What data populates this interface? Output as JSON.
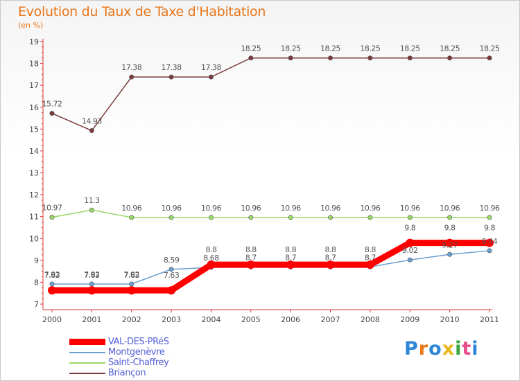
{
  "chart_data": {
    "type": "line",
    "title": "Evolution du Taux de Taxe d'Habitation",
    "subtitle": "(en %)",
    "x": [
      "2000",
      "2001",
      "2002",
      "2003",
      "2004",
      "2005",
      "2006",
      "2007",
      "2008",
      "2009",
      "2010",
      "2011"
    ],
    "ylim": [
      7,
      19
    ],
    "yticks": [
      7,
      8,
      9,
      10,
      11,
      12,
      13,
      14,
      15,
      16,
      17,
      18,
      19
    ],
    "grid": false,
    "series": [
      {
        "name": "VAL-DES-PRéS",
        "color": "#ff0000",
        "labels_shown": true,
        "values": [
          7.63,
          7.63,
          7.63,
          7.63,
          8.8,
          8.8,
          8.8,
          8.8,
          8.8,
          9.8,
          9.8,
          9.8
        ],
        "labels": [
          "7.63",
          "7.63",
          "7.63",
          "7.63",
          "8.8",
          "8.8",
          "8.8",
          "8.8",
          "8.8",
          "9.8",
          "9.8",
          "9.8"
        ]
      },
      {
        "name": "Montgenèvre",
        "color": "#6a9fd0",
        "labels_shown": true,
        "values": [
          7.92,
          7.92,
          7.92,
          8.59,
          8.68,
          8.7,
          8.7,
          8.7,
          8.7,
          9.02,
          9.27,
          9.44
        ],
        "labels": [
          "7.92",
          "7.92",
          "7.92",
          "8.59",
          "8.68",
          "8.7",
          "8.7",
          "8.7",
          "8.7",
          "9.02",
          "9.27",
          "9.44"
        ]
      },
      {
        "name": "Saint-Chaffrey",
        "color": "#99d666",
        "labels_shown": true,
        "values": [
          10.97,
          11.3,
          10.96,
          10.96,
          10.96,
          10.96,
          10.96,
          10.96,
          10.96,
          10.96,
          10.96,
          10.96
        ],
        "labels": [
          "10.97",
          "11.3",
          "10.96",
          "10.96",
          "10.96",
          "10.96",
          "10.96",
          "10.96",
          "10.96",
          "10.96",
          "10.96",
          "10.96"
        ]
      },
      {
        "name": "Briançon",
        "color": "#7a3a3a",
        "labels_shown": true,
        "values": [
          15.72,
          14.93,
          17.38,
          17.38,
          17.38,
          18.25,
          18.25,
          18.25,
          18.25,
          18.25,
          18.25,
          18.25
        ],
        "labels": [
          "15.72",
          "14.93",
          "17.38",
          "17.38",
          "17.38",
          "18.25",
          "18.25",
          "18.25",
          "18.25",
          "18.25",
          "18.25",
          "18.25"
        ]
      }
    ],
    "legend_position": "bottom-left"
  },
  "brand": {
    "logo_text": "Proxiti",
    "colors": [
      "#2e86d6",
      "#e8761a",
      "#2e86d6",
      "#e8b81a",
      "#3aa63a",
      "#e84a8a",
      "#2e86d6"
    ]
  }
}
